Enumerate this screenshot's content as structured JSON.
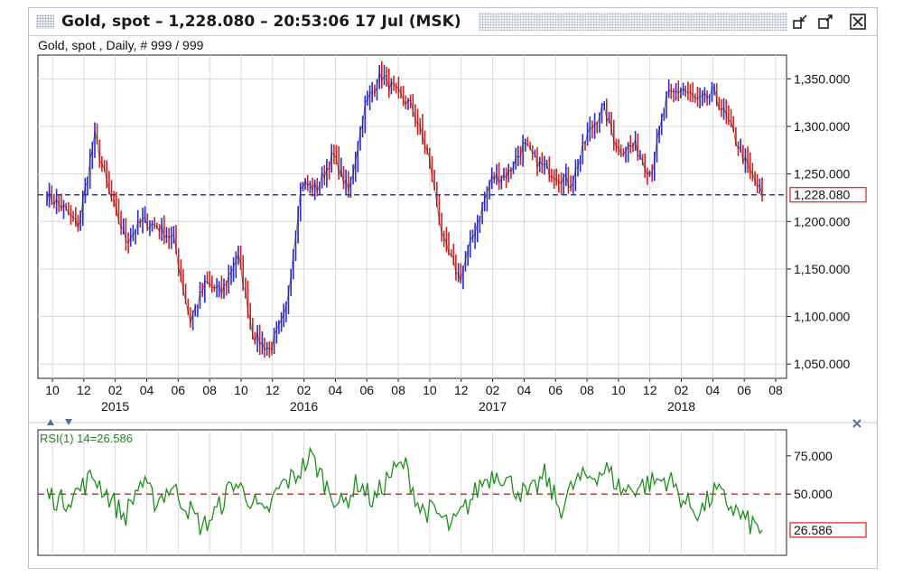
{
  "window": {
    "title": "Gold, spot – 1,228.080 – 20:53:06  17 Jul (MSK)",
    "subtitle": "Gold, spot , Daily, # 999 / 999"
  },
  "colors": {
    "up_bar": "#2a2ad6",
    "down_bar": "#d42020",
    "price_line": "#2a3f8f",
    "rsi_line": "#1f8f1f",
    "rsi_midline": "#cc2222",
    "last_label_border": "#cc2222",
    "grid": "#d9d9d9"
  },
  "chart_data": [
    {
      "type": "candlestick",
      "title": "Gold, spot , Daily, # 999 / 999",
      "x_tick_labels": [
        "10",
        "12",
        "02",
        "04",
        "06",
        "08",
        "10",
        "12",
        "02",
        "04",
        "06",
        "08",
        "10",
        "12",
        "02",
        "04",
        "06",
        "08",
        "10",
        "12",
        "02",
        "04",
        "06",
        "08"
      ],
      "x_year_labels": [
        "2015",
        "2016",
        "2017",
        "2018"
      ],
      "y_ticks": [
        "1,050.000",
        "1,100.000",
        "1,150.000",
        "1,200.000",
        "1,250.000",
        "1,300.000",
        "1,350.000"
      ],
      "ylim": [
        1035,
        1375
      ],
      "last_value": "1,228.080",
      "last_value_number": 1228.08,
      "grid": true,
      "x": [
        "2014-10",
        "2014-11",
        "2014-12",
        "2015-01",
        "2015-02",
        "2015-03",
        "2015-04",
        "2015-05",
        "2015-06",
        "2015-07",
        "2015-08",
        "2015-09",
        "2015-10",
        "2015-11",
        "2015-12",
        "2016-01",
        "2016-02",
        "2016-03",
        "2016-04",
        "2016-05",
        "2016-06",
        "2016-07",
        "2016-08",
        "2016-09",
        "2016-10",
        "2016-11",
        "2016-12",
        "2017-01",
        "2017-02",
        "2017-03",
        "2017-04",
        "2017-05",
        "2017-06",
        "2017-07",
        "2017-08",
        "2017-09",
        "2017-10",
        "2017-11",
        "2017-12",
        "2018-01",
        "2018-02",
        "2018-03",
        "2018-04",
        "2018-05",
        "2018-06",
        "2018-07"
      ],
      "series": [
        {
          "values": [
            1228,
            1215,
            1195,
            1290,
            1225,
            1180,
            1200,
            1195,
            1180,
            1095,
            1135,
            1125,
            1165,
            1080,
            1065,
            1100,
            1240,
            1235,
            1270,
            1230,
            1320,
            1355,
            1335,
            1320,
            1270,
            1175,
            1140,
            1195,
            1245,
            1250,
            1280,
            1260,
            1250,
            1240,
            1290,
            1320,
            1275,
            1280,
            1250,
            1330,
            1340,
            1325,
            1335,
            1300,
            1260,
            1228
          ]
        }
      ]
    },
    {
      "type": "line",
      "title": "RSI(1) 14=26.586",
      "y_ticks": [
        "50.000",
        "75.000"
      ],
      "ylim": [
        10,
        92
      ],
      "midline": 50,
      "last_value": "26.586",
      "last_value_number": 26.586,
      "series": [
        {
          "name": "RSI(1) 14",
          "values": [
            50,
            45,
            52,
            62,
            48,
            35,
            58,
            45,
            55,
            42,
            28,
            40,
            58,
            48,
            35,
            55,
            62,
            75,
            55,
            42,
            58,
            45,
            62,
            70,
            40,
            38,
            28,
            42,
            58,
            65,
            55,
            48,
            62,
            40,
            58,
            62,
            66,
            52,
            55,
            58,
            60,
            45,
            38,
            52,
            42,
            32,
            26.586
          ]
        }
      ]
    }
  ]
}
